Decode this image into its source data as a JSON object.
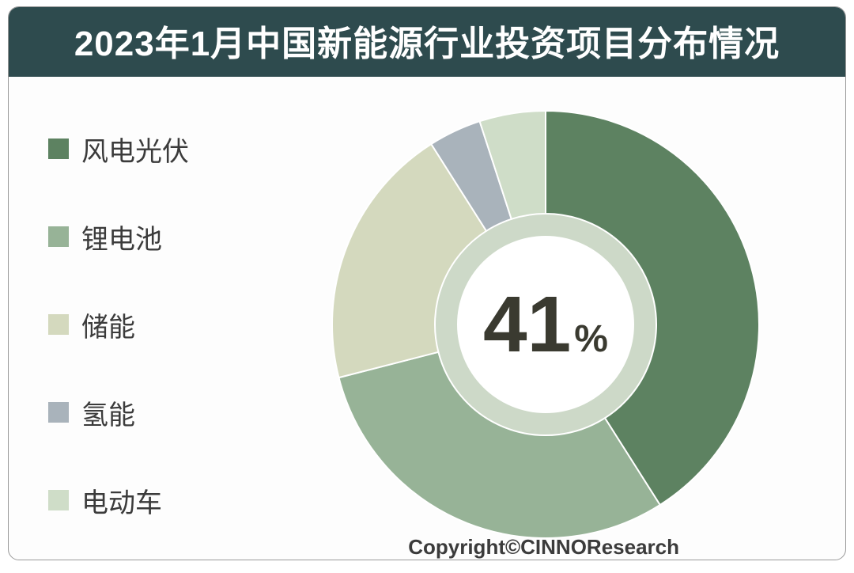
{
  "title": "2023年1月中国新能源行业投资项目分布情况",
  "chart": {
    "type": "donut",
    "center_value": "41",
    "center_suffix": "%",
    "background_color": "#fdfdfd",
    "ring_outer_radius": 270,
    "ring_inner_radius": 140,
    "start_angle_deg": -90,
    "slices": [
      {
        "label": "风电光伏",
        "value": 41,
        "color": "#5d8261"
      },
      {
        "label": "锂电池",
        "value": 30,
        "color": "#97b397"
      },
      {
        "label": "储能",
        "value": 20,
        "color": "#d4d9be"
      },
      {
        "label": "氢能",
        "value": 4,
        "color": "#a9b3bb"
      },
      {
        "label": "电动车",
        "value": 5,
        "color": "#cfddc8"
      }
    ],
    "inner_tint_color": "#cdd9c8",
    "inner_hole_color": "#ffffff"
  },
  "legend": {
    "swatch_size": 26,
    "font_size": 34,
    "items": [
      {
        "label": "风电光伏",
        "color": "#5d8261"
      },
      {
        "label": "锂电池",
        "color": "#97b397"
      },
      {
        "label": "储能",
        "color": "#d4d9be"
      },
      {
        "label": "氢能",
        "color": "#a9b3bb"
      },
      {
        "label": "电动车",
        "color": "#cfddc8"
      }
    ]
  },
  "copyright": "Copyright©CINNOResearch",
  "colors": {
    "title_bar_bg": "#2e4b4e",
    "title_text": "#ffffff",
    "text": "#3b3b3b",
    "center_text": "#3a3a30",
    "border": "#999999"
  },
  "typography": {
    "title_fontsize": 44,
    "title_weight": 700,
    "legend_fontsize": 34,
    "center_value_fontsize": 100,
    "center_value_weight": 900,
    "center_suffix_fontsize": 48,
    "copyright_fontsize": 26
  }
}
